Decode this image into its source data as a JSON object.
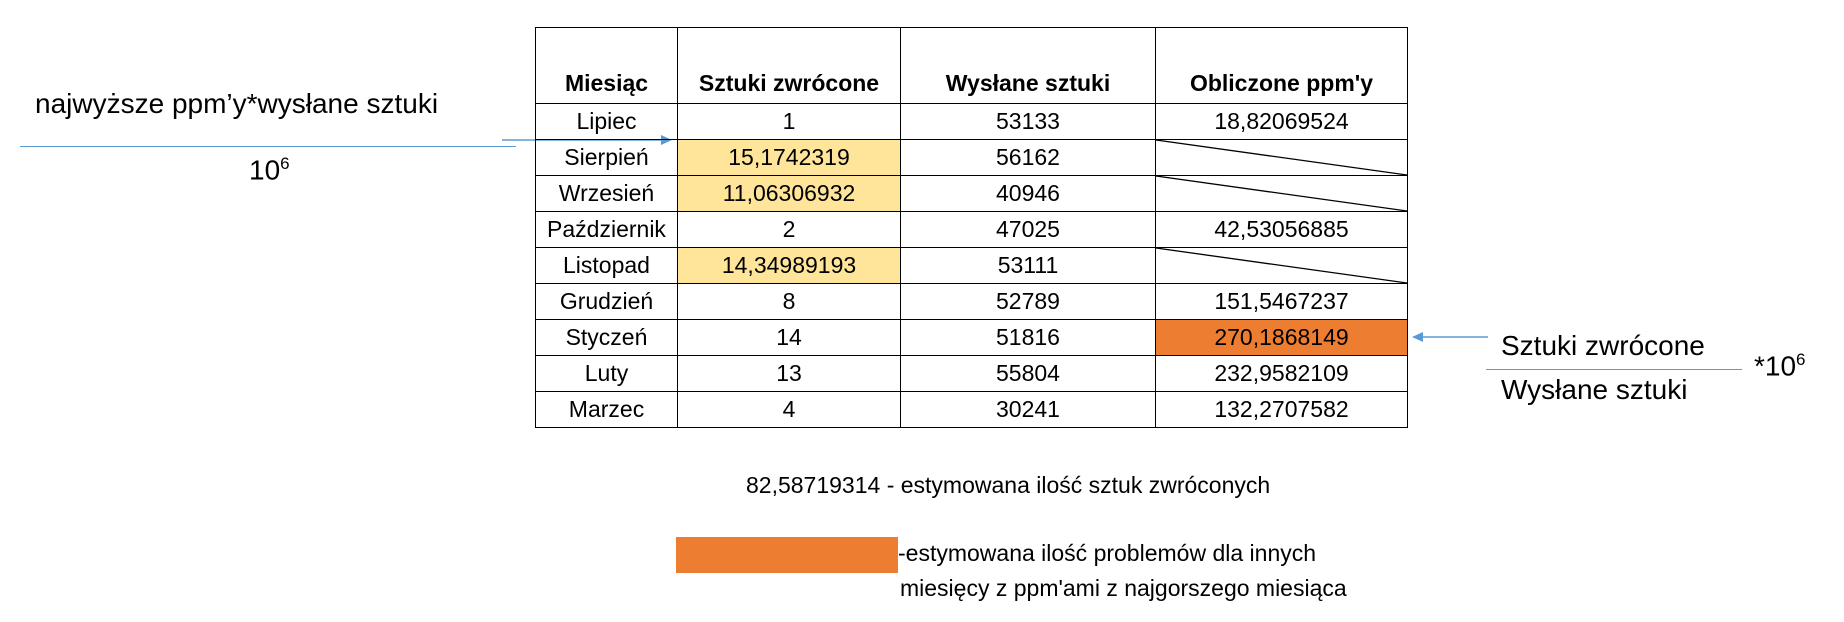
{
  "table": {
    "headers": [
      "Miesiąc",
      "Sztuki zwrócone",
      "Wysłane sztuki",
      "Obliczone ppm'y"
    ],
    "rows": [
      {
        "month": "Lipiec",
        "returned": "1",
        "shipped": "53133",
        "ppm": "18,82069524"
      },
      {
        "month": "Sierpień",
        "returned": "15,1742319",
        "shipped": "56162",
        "ppm": ""
      },
      {
        "month": "Wrzesień",
        "returned": "11,06306932",
        "shipped": "40946",
        "ppm": ""
      },
      {
        "month": "Październik",
        "returned": "2",
        "shipped": "47025",
        "ppm": "42,53056885"
      },
      {
        "month": "Listopad",
        "returned": "14,34989193",
        "shipped": "53111",
        "ppm": ""
      },
      {
        "month": "Grudzień",
        "returned": "8",
        "shipped": "52789",
        "ppm": "151,5467237"
      },
      {
        "month": "Styczeń",
        "returned": "14",
        "shipped": "51816",
        "ppm": "270,1868149"
      },
      {
        "month": "Luty",
        "returned": "13",
        "shipped": "55804",
        "ppm": "232,9582109"
      },
      {
        "month": "Marzec",
        "returned": "4",
        "shipped": "30241",
        "ppm": "132,2707582"
      }
    ]
  },
  "left_formula": {
    "numerator": "najwyższe ppm’y*wysłane sztuki",
    "denominator_base": "10",
    "denominator_exp": "6"
  },
  "right_formula": {
    "numerator": "Sztuki zwrócone",
    "denominator": "Wysłane sztuki",
    "multiplier": "*10",
    "multiplier_exp": "6"
  },
  "estimate_line": "82,58719314 - estymowana ilość sztuk zwróconych",
  "legend": {
    "line1": "-estymowana ilość problemów dla innych",
    "line2": "miesięcy z ppm'ami z najgorszego miesiąca"
  },
  "colors": {
    "highlight_yellow": "#ffe599",
    "highlight_orange": "#ed7d31",
    "arrow_blue": "#5b9bd5"
  }
}
